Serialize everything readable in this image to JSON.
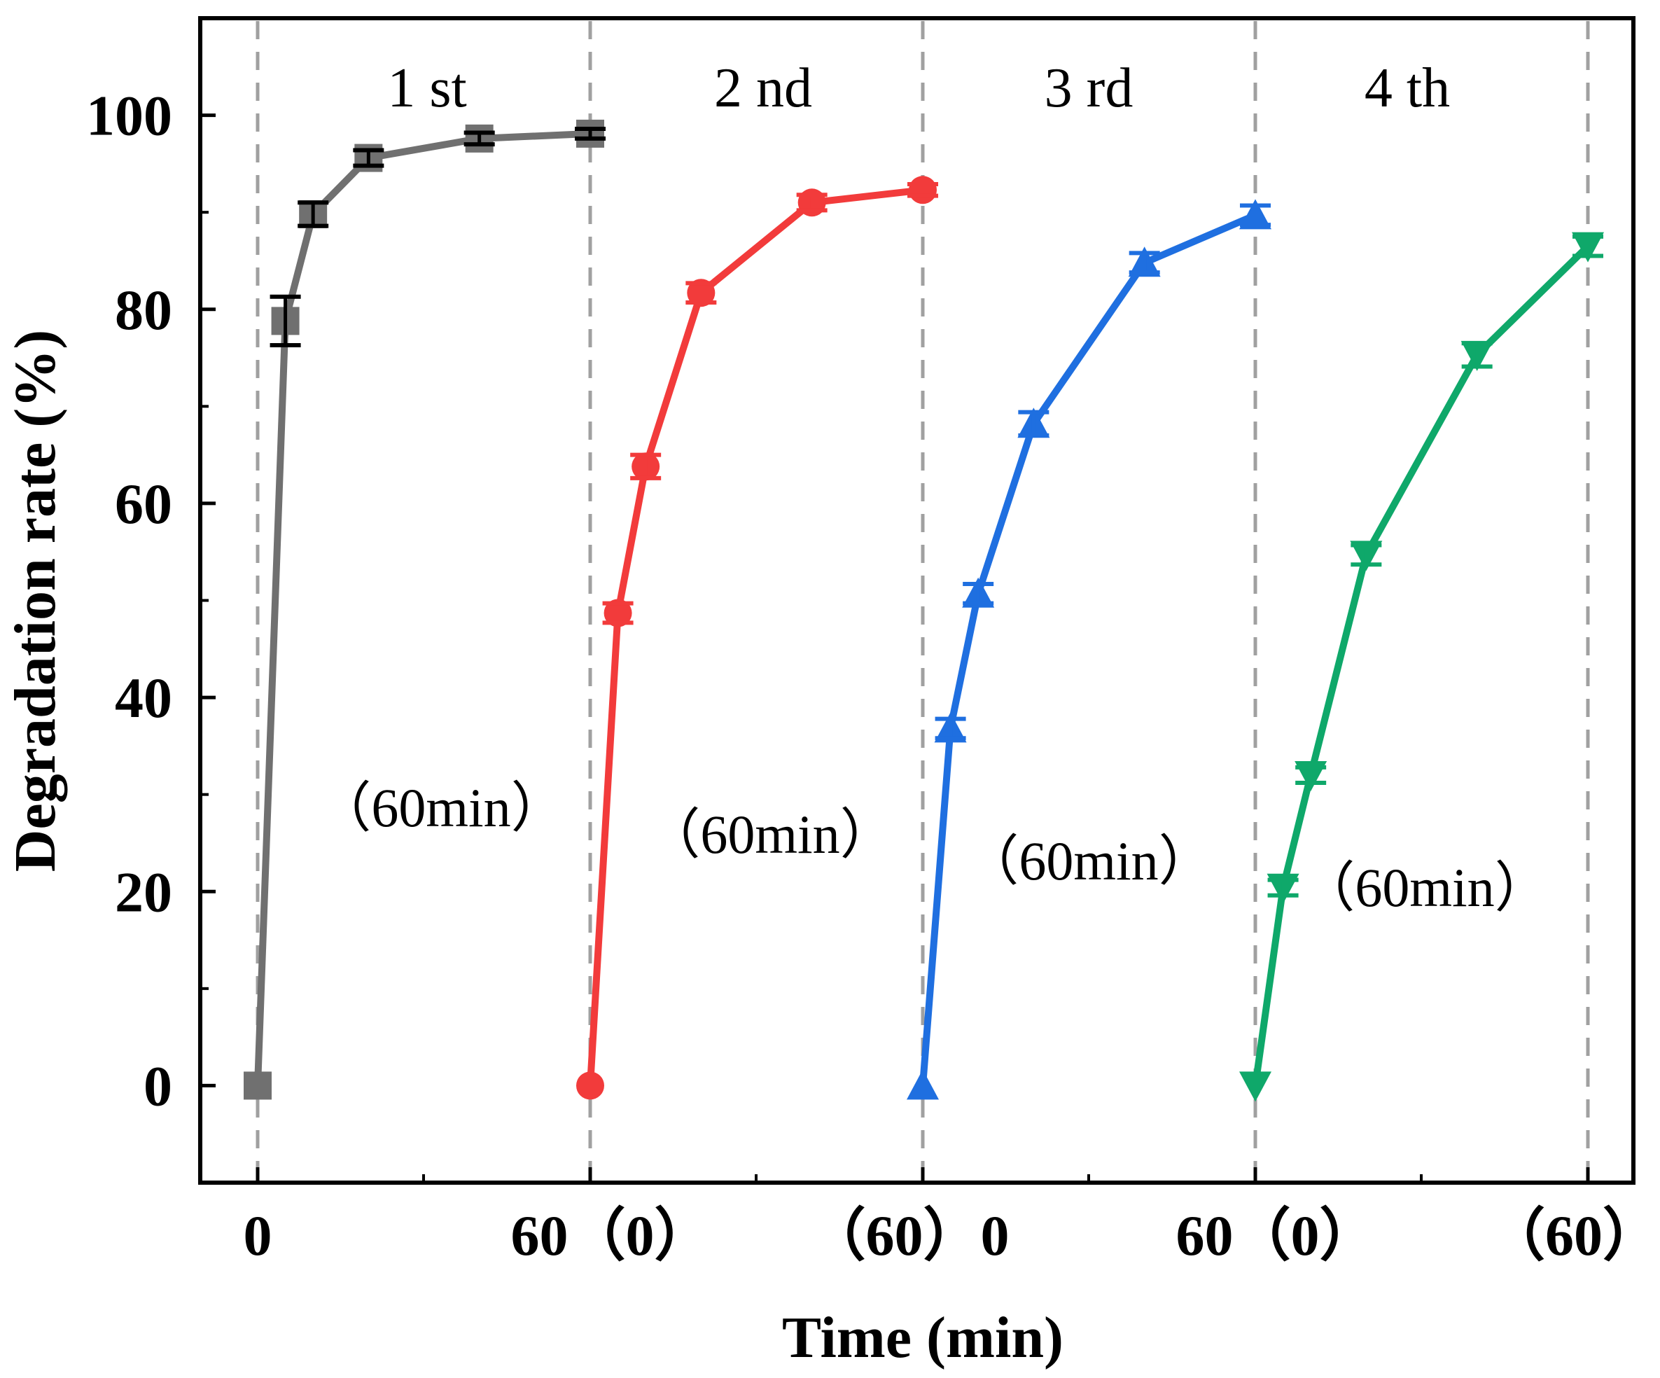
{
  "chart_data": {
    "type": "line",
    "xlabel": "Time (min)",
    "ylabel": "Degradation rate (%)",
    "ylim": [
      -10,
      110
    ],
    "y_ticks": [
      0,
      20,
      40,
      60,
      80,
      100
    ],
    "x_tick_labels": [
      "0",
      "60（0）",
      "（60）0",
      "60（0）",
      "（60）"
    ],
    "grid": false,
    "cycle_labels": [
      "1 st",
      "2 nd",
      "3 rd",
      "4 th"
    ],
    "duration_labels": [
      "（60min）",
      "（60min）",
      "（60min）",
      "（60min）"
    ],
    "series": [
      {
        "name": "1 st",
        "color": "#707070",
        "marker": "square",
        "x": [
          0,
          5,
          10,
          20,
          40,
          60
        ],
        "values": [
          0,
          78.8,
          89.8,
          95.6,
          97.6,
          98.1
        ],
        "error": [
          0,
          2.5,
          1.2,
          0.8,
          0.6,
          0.5
        ]
      },
      {
        "name": "2 nd",
        "color": "#f23b3b",
        "marker": "circle",
        "x": [
          0,
          5,
          10,
          20,
          40,
          60
        ],
        "values": [
          0,
          48.7,
          63.8,
          81.7,
          91.0,
          92.3
        ],
        "error": [
          0,
          1.0,
          1.2,
          1.0,
          0.8,
          0.6
        ]
      },
      {
        "name": "3 rd",
        "color": "#1f6fe0",
        "marker": "triangle-up",
        "x": [
          0,
          5,
          10,
          20,
          40,
          60
        ],
        "values": [
          0,
          36.8,
          50.7,
          68.2,
          84.8,
          89.7
        ],
        "error": [
          0,
          1.0,
          1.0,
          1.2,
          1.0,
          1.0
        ]
      },
      {
        "name": "4 th",
        "color": "#0fa86a",
        "marker": "triangle-down",
        "x": [
          0,
          5,
          10,
          20,
          40,
          60
        ],
        "values": [
          0,
          20.4,
          32.0,
          54.7,
          75.3,
          86.5
        ],
        "error": [
          0,
          0.8,
          0.8,
          1.0,
          1.2,
          1.0
        ]
      }
    ]
  }
}
